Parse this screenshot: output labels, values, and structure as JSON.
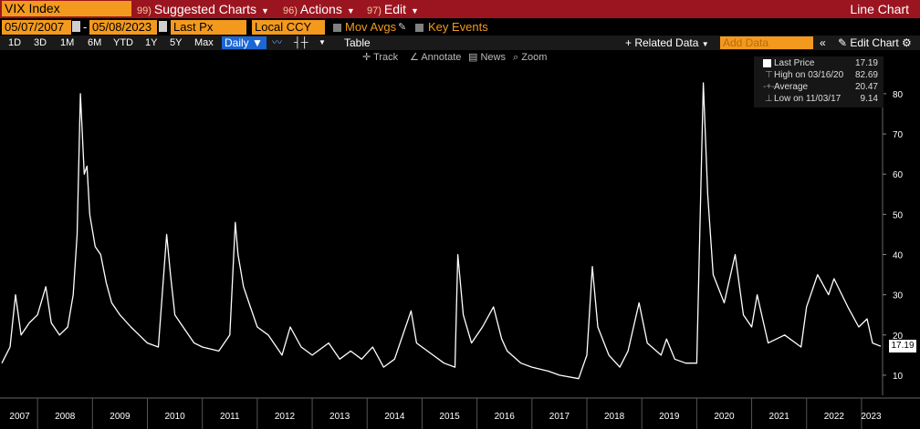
{
  "header": {
    "ticker": "VIX Index",
    "menus": [
      {
        "num": "99)",
        "label": "Suggested Charts"
      },
      {
        "num": "96)",
        "label": "Actions"
      },
      {
        "num": "97)",
        "label": "Edit"
      }
    ],
    "chart_type": "Line Chart"
  },
  "options": {
    "start_date": "05/07/2007",
    "separator": "-",
    "end_date": "05/08/2023",
    "field": "Last Px",
    "currency": "Local CCY",
    "mov_avgs": "Mov Avgs",
    "key_events": "Key Events"
  },
  "toolbar": {
    "periods": [
      "1D",
      "3D",
      "1M",
      "6M",
      "YTD",
      "1Y",
      "5Y",
      "Max"
    ],
    "frequency": "Daily",
    "table": "Table",
    "related_data": "+ Related Data",
    "add_data_placeholder": "Add Data",
    "edit_chart": "Edit Chart"
  },
  "tools": {
    "track": "Track",
    "annotate": "Annotate",
    "news": "News",
    "zoom": "Zoom"
  },
  "legend": {
    "last_price_label": "Last Price",
    "last_price": "17.19",
    "high_label": "High on 03/16/20",
    "high": "82.69",
    "average_label": "Average",
    "average": "20.47",
    "low_label": "Low on 11/03/17",
    "low": "9.14"
  },
  "colors": {
    "background": "#000000",
    "line": "#ffffff",
    "header": "#9b1520",
    "accent": "#f39a1e",
    "selected": "#1c66d6"
  },
  "chart_data": {
    "type": "line",
    "series": [
      {
        "name": "VIX Index",
        "x": [
          2007.35,
          2007.5,
          2007.6,
          2007.7,
          2007.85,
          2008.0,
          2008.15,
          2008.25,
          2008.4,
          2008.55,
          2008.65,
          2008.72,
          2008.78,
          2008.85,
          2008.9,
          2008.95,
          2009.05,
          2009.15,
          2009.25,
          2009.35,
          2009.5,
          2009.7,
          2009.85,
          2010.0,
          2010.2,
          2010.35,
          2010.42,
          2010.5,
          2010.65,
          2010.85,
          2011.0,
          2011.3,
          2011.5,
          2011.6,
          2011.65,
          2011.75,
          2011.85,
          2012.0,
          2012.2,
          2012.45,
          2012.6,
          2012.8,
          2013.0,
          2013.3,
          2013.5,
          2013.7,
          2013.9,
          2014.1,
          2014.3,
          2014.5,
          2014.8,
          2014.9,
          2015.2,
          2015.4,
          2015.6,
          2015.65,
          2015.75,
          2015.9,
          2016.1,
          2016.3,
          2016.45,
          2016.55,
          2016.8,
          2017.0,
          2017.3,
          2017.5,
          2017.85,
          2018.0,
          2018.1,
          2018.2,
          2018.4,
          2018.6,
          2018.75,
          2018.95,
          2019.1,
          2019.35,
          2019.45,
          2019.6,
          2019.8,
          2020.0,
          2020.12,
          2020.2,
          2020.3,
          2020.5,
          2020.7,
          2020.85,
          2021.0,
          2021.1,
          2021.3,
          2021.6,
          2021.9,
          2022.0,
          2022.2,
          2022.4,
          2022.5,
          2022.75,
          2022.95,
          2023.1,
          2023.2,
          2023.35
        ],
        "values": [
          13,
          17,
          30,
          20,
          23,
          25,
          32,
          23,
          20,
          22,
          30,
          45,
          80,
          60,
          62,
          50,
          42,
          40,
          33,
          28,
          25,
          22,
          20,
          18,
          17,
          45,
          35,
          25,
          22,
          18,
          17,
          16,
          20,
          48,
          40,
          32,
          28,
          22,
          20,
          15,
          22,
          17,
          15,
          18,
          14,
          16,
          14,
          17,
          12,
          14,
          26,
          18,
          15,
          13,
          12,
          40,
          25,
          18,
          22,
          27,
          19,
          16,
          13,
          12,
          11,
          10,
          9.14,
          15,
          37,
          22,
          15,
          12,
          16,
          28,
          18,
          15,
          19,
          14,
          13,
          13,
          82.69,
          55,
          35,
          28,
          40,
          25,
          22,
          30,
          18,
          20,
          17,
          27,
          35,
          30,
          34,
          27,
          22,
          24,
          18,
          17.19
        ]
      }
    ],
    "ylim": [
      5,
      87
    ],
    "yticks": [
      10,
      20,
      30,
      40,
      50,
      60,
      70,
      80
    ],
    "xticks": [
      "2007",
      "2008",
      "2009",
      "2010",
      "2011",
      "2012",
      "2013",
      "2014",
      "2015",
      "2016",
      "2017",
      "2018",
      "2019",
      "2020",
      "2021",
      "2022",
      "2023"
    ],
    "xlim": [
      2007.35,
      2023.35
    ],
    "last_value_label": "17.19",
    "grid": false,
    "legend": "top-right"
  }
}
